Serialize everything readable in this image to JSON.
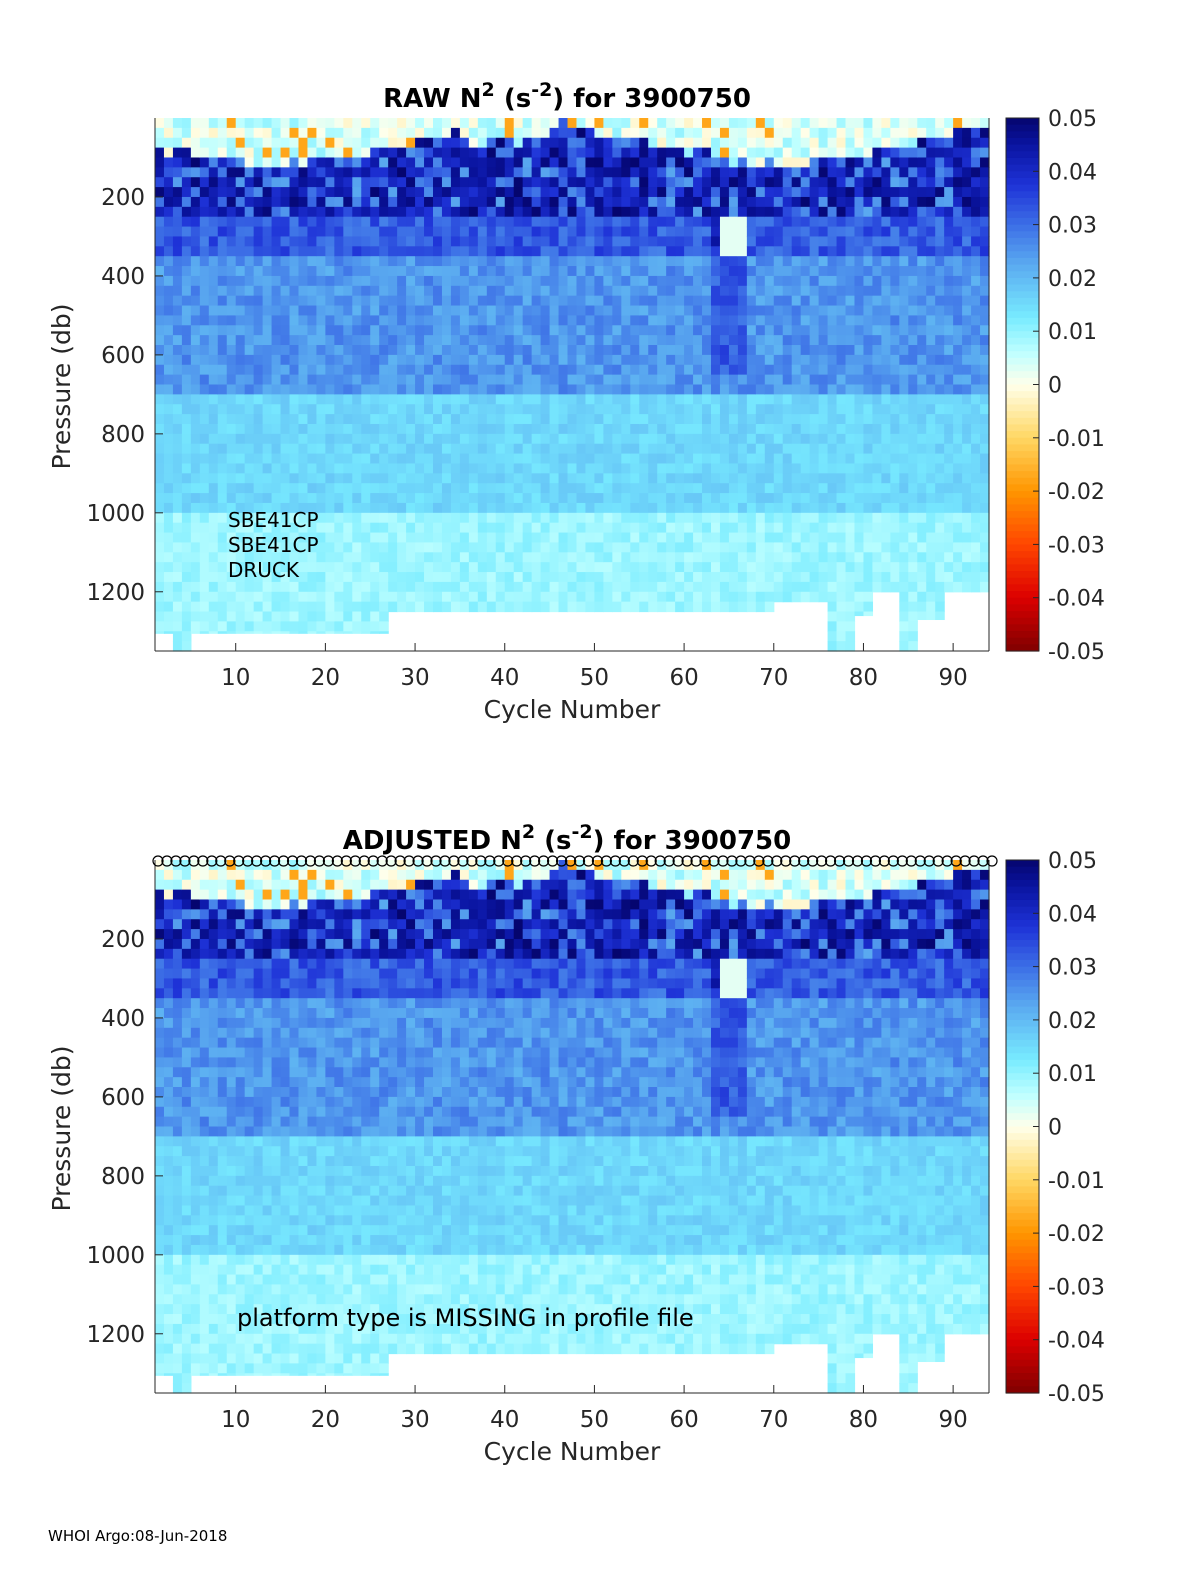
{
  "chart_data": [
    {
      "type": "heatmap",
      "title_prefix": "RAW N",
      "title_sup": "2",
      "title_mid": " (s",
      "title_sup2": "-2",
      "title_suffix": ") for 3900750",
      "xlabel": "Cycle Number",
      "ylabel": "Pressure (db)",
      "xlim": [
        1,
        93
      ],
      "ylim": [
        1350,
        0
      ],
      "xticks": [
        10,
        20,
        30,
        40,
        50,
        60,
        70,
        80,
        90
      ],
      "yticks": [
        200,
        400,
        600,
        800,
        1000,
        1200
      ],
      "colorbar": {
        "range": [
          -0.05,
          0.05
        ],
        "ticks": [
          "0.05",
          "0.04",
          "0.03",
          "0.02",
          "0.01",
          "0",
          "-0.01",
          "-0.02",
          "-0.03",
          "-0.04",
          "-0.05"
        ],
        "colormap": "jet-diverging"
      },
      "annotations": [
        "SBE41CP",
        "SBE41CP",
        "DRUCK"
      ],
      "markers": []
    },
    {
      "type": "heatmap",
      "title_prefix": "ADJUSTED N",
      "title_sup": "2",
      "title_mid": " (s",
      "title_sup2": "-2",
      "title_suffix": ") for 3900750",
      "xlabel": "Cycle Number",
      "ylabel": "Pressure (db)",
      "xlim": [
        1,
        93
      ],
      "ylim": [
        1350,
        0
      ],
      "xticks": [
        10,
        20,
        30,
        40,
        50,
        60,
        70,
        80,
        90
      ],
      "yticks": [
        200,
        400,
        600,
        800,
        1000,
        1200
      ],
      "colorbar": {
        "range": [
          -0.05,
          0.05
        ],
        "ticks": [
          "0.05",
          "0.04",
          "0.03",
          "0.02",
          "0.01",
          "0",
          "-0.01",
          "-0.02",
          "-0.03",
          "-0.04",
          "-0.05"
        ],
        "colormap": "jet-diverging"
      },
      "annotations": [
        "platform type is MISSING in profile file"
      ],
      "markers": [
        "open circles along top at each cycle"
      ]
    }
  ],
  "footer": "WHOI Argo:08-Jun-2018"
}
